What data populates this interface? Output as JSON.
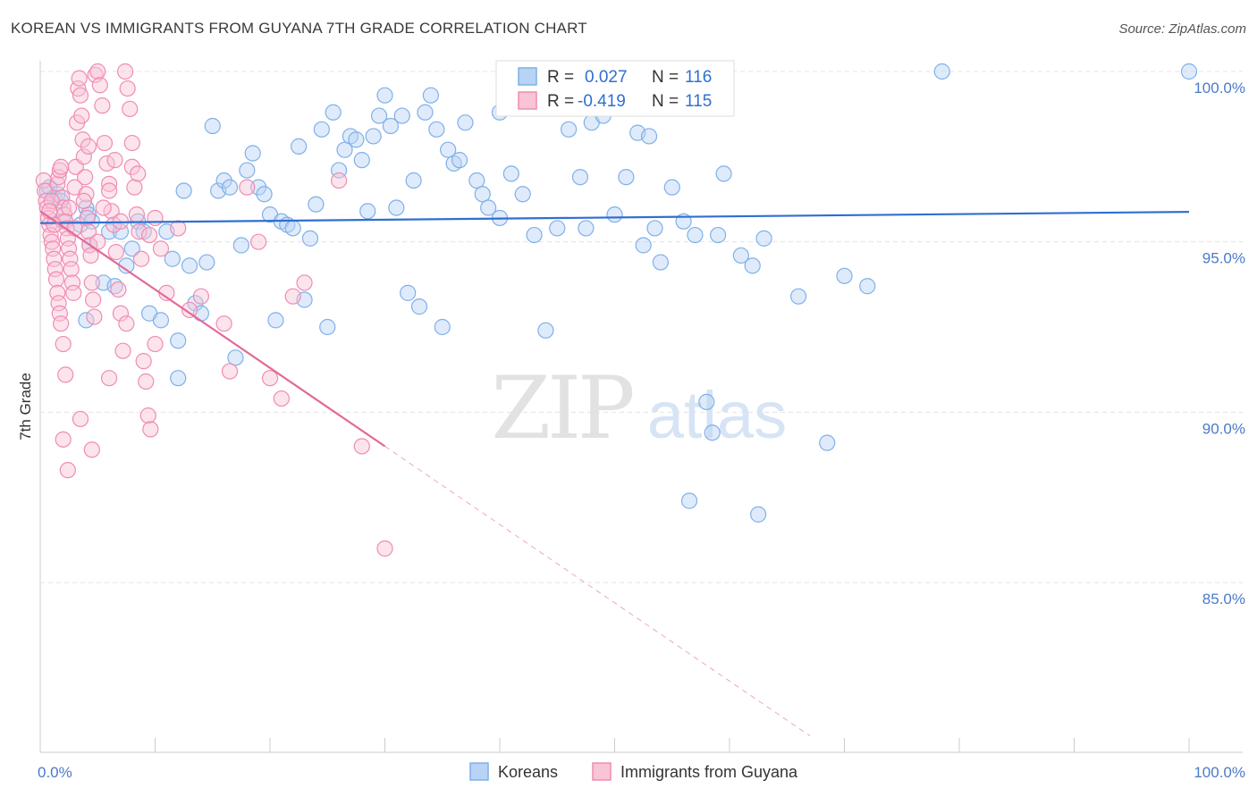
{
  "title": "KOREAN VS IMMIGRANTS FROM GUYANA 7TH GRADE CORRELATION CHART",
  "source": "Source: ZipAtlas.com",
  "watermark": {
    "zip": "ZIP",
    "atlas": "atlas"
  },
  "chart_data": {
    "type": "scatter",
    "xlabel": "",
    "ylabel": "7th Grade",
    "xlim": [
      0,
      100
    ],
    "ylim": [
      80.5,
      100.8
    ],
    "x_tick_labels": [
      {
        "value": 0,
        "label": "0.0%"
      },
      {
        "value": 100,
        "label": "100.0%"
      }
    ],
    "y_ticks": [
      {
        "value": 100,
        "label": "100.0%"
      },
      {
        "value": 95,
        "label": "95.0%"
      },
      {
        "value": 90,
        "label": "90.0%"
      },
      {
        "value": 85,
        "label": "85.0%"
      }
    ],
    "legend": {
      "r_label": "R =",
      "n_label": "N =",
      "entries": [
        {
          "name": "Koreans",
          "r": "0.027",
          "n": "116",
          "color": "#7fb0ea",
          "fill": "#b8d3f4",
          "line": "#2f6fd1"
        },
        {
          "name": "Immigrants from Guyana",
          "r": "-0.419",
          "n": "115",
          "color": "#f08cb2",
          "fill": "#f8c4d6",
          "line": "#e36a98"
        }
      ]
    },
    "series": [
      {
        "name": "Koreans",
        "trend": {
          "x1": 0,
          "y1": 95.55,
          "x2": 100,
          "y2": 95.88,
          "dash_to": null
        },
        "points": [
          [
            0.6,
            96.5
          ],
          [
            0.8,
            96.6
          ],
          [
            1.2,
            96.3
          ],
          [
            1.5,
            96.4
          ],
          [
            1.8,
            96.2
          ],
          [
            2.0,
            95.6
          ],
          [
            3.5,
            95.5
          ],
          [
            4.0,
            96.0
          ],
          [
            4.2,
            95.8
          ],
          [
            4.5,
            95.6
          ],
          [
            4.3,
            94.9
          ],
          [
            4.0,
            92.7
          ],
          [
            5.5,
            93.8
          ],
          [
            6.5,
            93.7
          ],
          [
            6.0,
            95.3
          ],
          [
            7.0,
            95.3
          ],
          [
            7.5,
            94.3
          ],
          [
            8.0,
            94.8
          ],
          [
            8.5,
            95.6
          ],
          [
            9.0,
            95.3
          ],
          [
            9.5,
            92.9
          ],
          [
            10.5,
            92.7
          ],
          [
            11.0,
            95.3
          ],
          [
            11.5,
            94.5
          ],
          [
            12.0,
            92.1
          ],
          [
            12.5,
            96.5
          ],
          [
            12.0,
            91.0
          ],
          [
            13.0,
            94.3
          ],
          [
            13.5,
            93.2
          ],
          [
            14.0,
            92.9
          ],
          [
            14.5,
            94.4
          ],
          [
            15.0,
            98.4
          ],
          [
            15.5,
            96.5
          ],
          [
            16.0,
            96.8
          ],
          [
            16.5,
            96.6
          ],
          [
            17.0,
            91.6
          ],
          [
            17.5,
            94.9
          ],
          [
            18.0,
            97.1
          ],
          [
            18.5,
            97.6
          ],
          [
            19.0,
            96.6
          ],
          [
            19.5,
            96.4
          ],
          [
            20.0,
            95.8
          ],
          [
            20.5,
            92.7
          ],
          [
            21.0,
            95.6
          ],
          [
            21.5,
            95.5
          ],
          [
            22.0,
            95.4
          ],
          [
            22.5,
            97.8
          ],
          [
            23.0,
            93.3
          ],
          [
            23.5,
            95.1
          ],
          [
            24.0,
            96.1
          ],
          [
            24.5,
            98.3
          ],
          [
            25.0,
            92.5
          ],
          [
            25.5,
            98.8
          ],
          [
            26.0,
            97.1
          ],
          [
            26.5,
            97.7
          ],
          [
            27.0,
            98.1
          ],
          [
            27.5,
            98.0
          ],
          [
            28.0,
            97.4
          ],
          [
            28.5,
            95.9
          ],
          [
            29.0,
            98.1
          ],
          [
            29.5,
            98.7
          ],
          [
            30.0,
            99.3
          ],
          [
            30.5,
            98.4
          ],
          [
            31.0,
            96.0
          ],
          [
            31.5,
            98.7
          ],
          [
            32.0,
            93.5
          ],
          [
            32.5,
            96.8
          ],
          [
            33.0,
            93.1
          ],
          [
            33.5,
            98.8
          ],
          [
            34.0,
            99.3
          ],
          [
            34.5,
            98.3
          ],
          [
            35.0,
            92.5
          ],
          [
            35.5,
            97.7
          ],
          [
            36.0,
            97.3
          ],
          [
            36.5,
            97.4
          ],
          [
            37.0,
            98.5
          ],
          [
            38.0,
            96.8
          ],
          [
            38.5,
            96.4
          ],
          [
            39.0,
            96.0
          ],
          [
            40.0,
            95.7
          ],
          [
            40.0,
            98.8
          ],
          [
            41.0,
            97.0
          ],
          [
            42.0,
            96.4
          ],
          [
            43.0,
            95.2
          ],
          [
            44.0,
            92.4
          ],
          [
            45.0,
            95.4
          ],
          [
            46.0,
            98.3
          ],
          [
            47.0,
            96.9
          ],
          [
            47.5,
            95.4
          ],
          [
            48.0,
            98.5
          ],
          [
            49.0,
            98.7
          ],
          [
            50.0,
            95.8
          ],
          [
            51.0,
            96.9
          ],
          [
            52.0,
            98.2
          ],
          [
            52.5,
            94.9
          ],
          [
            53.0,
            98.1
          ],
          [
            53.5,
            95.4
          ],
          [
            54.0,
            94.4
          ],
          [
            55.0,
            96.6
          ],
          [
            56.0,
            95.6
          ],
          [
            56.5,
            87.4
          ],
          [
            57.0,
            95.2
          ],
          [
            58.0,
            90.3
          ],
          [
            58.5,
            89.4
          ],
          [
            59.0,
            95.2
          ],
          [
            59.5,
            97.0
          ],
          [
            61.0,
            94.6
          ],
          [
            62.0,
            94.3
          ],
          [
            62.5,
            87.0
          ],
          [
            63.0,
            95.1
          ],
          [
            66.0,
            93.4
          ],
          [
            68.5,
            89.1
          ],
          [
            70.0,
            94.0
          ],
          [
            72.0,
            93.7
          ],
          [
            78.5,
            100.0
          ],
          [
            100.0,
            100.0
          ]
        ]
      },
      {
        "name": "Immigrants from Guyana",
        "trend": {
          "x1": 0,
          "y1": 95.9,
          "x2": 30,
          "y2": 89.0,
          "dash_to": {
            "x": 67,
            "y": 80.5
          }
        },
        "points": [
          [
            0.3,
            96.8
          ],
          [
            0.4,
            96.5
          ],
          [
            0.5,
            96.2
          ],
          [
            0.6,
            96.0
          ],
          [
            0.7,
            95.7
          ],
          [
            0.8,
            95.5
          ],
          [
            0.9,
            95.2
          ],
          [
            1.0,
            95.0
          ],
          [
            1.1,
            94.8
          ],
          [
            1.2,
            94.5
          ],
          [
            1.3,
            94.2
          ],
          [
            1.4,
            93.9
          ],
          [
            1.5,
            93.5
          ],
          [
            1.6,
            93.2
          ],
          [
            1.7,
            92.9
          ],
          [
            1.8,
            92.6
          ],
          [
            2.0,
            92.0
          ],
          [
            2.2,
            91.1
          ],
          [
            2.4,
            88.3
          ],
          [
            1.5,
            96.7
          ],
          [
            1.6,
            96.9
          ],
          [
            1.7,
            97.1
          ],
          [
            1.8,
            97.2
          ],
          [
            1.9,
            96.3
          ],
          [
            2.0,
            96.0
          ],
          [
            2.1,
            95.8
          ],
          [
            2.2,
            95.6
          ],
          [
            2.3,
            95.4
          ],
          [
            2.4,
            95.1
          ],
          [
            2.5,
            94.8
          ],
          [
            2.6,
            94.5
          ],
          [
            2.7,
            94.2
          ],
          [
            2.8,
            93.8
          ],
          [
            2.9,
            93.5
          ],
          [
            3.0,
            96.6
          ],
          [
            3.1,
            97.2
          ],
          [
            3.2,
            98.5
          ],
          [
            3.3,
            99.5
          ],
          [
            3.4,
            99.8
          ],
          [
            3.5,
            99.3
          ],
          [
            3.6,
            98.7
          ],
          [
            3.7,
            98.0
          ],
          [
            3.8,
            97.5
          ],
          [
            3.9,
            96.9
          ],
          [
            4.0,
            96.4
          ],
          [
            4.1,
            95.7
          ],
          [
            4.2,
            95.3
          ],
          [
            4.3,
            94.9
          ],
          [
            4.4,
            94.6
          ],
          [
            4.5,
            93.8
          ],
          [
            4.6,
            93.3
          ],
          [
            4.7,
            92.8
          ],
          [
            4.8,
            99.9
          ],
          [
            5.0,
            100.0
          ],
          [
            5.2,
            99.6
          ],
          [
            5.4,
            99.0
          ],
          [
            5.6,
            97.9
          ],
          [
            5.8,
            97.3
          ],
          [
            6.0,
            96.7
          ],
          [
            6.2,
            95.9
          ],
          [
            6.4,
            95.5
          ],
          [
            6.6,
            94.7
          ],
          [
            6.8,
            93.6
          ],
          [
            7.0,
            92.9
          ],
          [
            7.2,
            91.8
          ],
          [
            7.4,
            100.0
          ],
          [
            7.6,
            99.5
          ],
          [
            7.8,
            98.9
          ],
          [
            8.0,
            97.2
          ],
          [
            8.2,
            96.6
          ],
          [
            8.4,
            95.8
          ],
          [
            8.6,
            95.3
          ],
          [
            8.8,
            94.5
          ],
          [
            9.0,
            91.5
          ],
          [
            9.2,
            90.9
          ],
          [
            9.4,
            89.9
          ],
          [
            9.6,
            89.5
          ],
          [
            10.0,
            95.7
          ],
          [
            10.5,
            94.8
          ],
          [
            11.0,
            93.5
          ],
          [
            3.5,
            89.8
          ],
          [
            4.5,
            88.9
          ],
          [
            2.0,
            89.2
          ],
          [
            6.0,
            91.0
          ],
          [
            7.5,
            92.6
          ],
          [
            8.0,
            97.9
          ],
          [
            6.5,
            97.4
          ],
          [
            5.5,
            96.0
          ],
          [
            2.5,
            96.0
          ],
          [
            1.2,
            95.5
          ],
          [
            1.0,
            96.2
          ],
          [
            0.8,
            95.9
          ],
          [
            3.0,
            95.4
          ],
          [
            12.0,
            95.4
          ],
          [
            13.0,
            93.0
          ],
          [
            14.0,
            93.4
          ],
          [
            16.0,
            92.6
          ],
          [
            16.5,
            91.2
          ],
          [
            18.0,
            96.6
          ],
          [
            19.0,
            95.0
          ],
          [
            20.0,
            91.0
          ],
          [
            21.0,
            90.4
          ],
          [
            22.0,
            93.4
          ],
          [
            23.0,
            93.8
          ],
          [
            26.0,
            96.8
          ],
          [
            28.0,
            89.0
          ],
          [
            30.0,
            86.0
          ],
          [
            3.8,
            96.2
          ],
          [
            4.2,
            97.8
          ],
          [
            5.0,
            95.0
          ],
          [
            6.0,
            96.5
          ],
          [
            7.0,
            95.6
          ],
          [
            8.5,
            97.0
          ],
          [
            9.5,
            95.2
          ],
          [
            10.0,
            92.0
          ]
        ]
      }
    ]
  }
}
